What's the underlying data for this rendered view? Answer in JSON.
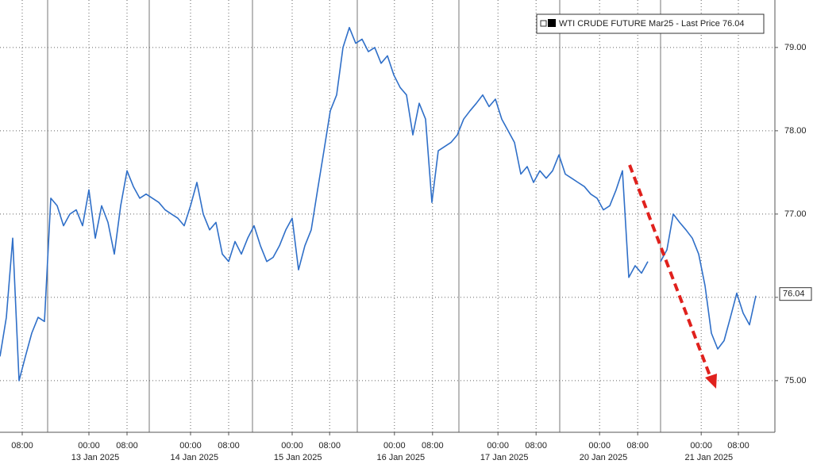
{
  "chart_data": {
    "type": "line",
    "series": [
      {
        "name": "WTI CRUDE FUTURE Mar25 - Last Price",
        "color": "#2f6fc8",
        "values": [
          75.29,
          75.76,
          76.71,
          75.0,
          75.29,
          75.57,
          75.76,
          75.71,
          77.19,
          77.1,
          76.86,
          77.0,
          77.05,
          76.86,
          77.29,
          76.71,
          77.1,
          76.9,
          76.52,
          77.1,
          77.52,
          77.33,
          77.19,
          77.24,
          77.19,
          77.14,
          77.05,
          77.0,
          76.95,
          76.86,
          77.1,
          77.38,
          77.0,
          76.81,
          76.9,
          76.52,
          76.43,
          76.67,
          76.52,
          76.71,
          76.86,
          76.62,
          76.43,
          76.48,
          76.62,
          76.81,
          76.95,
          76.33,
          76.62,
          76.81,
          77.29,
          77.76,
          78.24,
          78.43,
          79.0,
          79.24,
          79.05,
          79.1,
          78.95,
          79.0,
          78.81,
          78.9,
          78.67,
          78.52,
          78.43,
          77.95,
          78.33,
          78.14,
          77.14,
          77.76,
          77.81,
          77.86,
          77.95,
          78.14,
          78.24,
          78.33,
          78.43,
          78.29,
          78.38,
          78.14,
          78.0,
          77.86,
          77.48,
          77.57,
          77.38,
          77.52,
          77.43,
          77.52,
          77.71,
          77.48,
          77.43,
          77.38,
          77.33,
          77.24,
          77.19,
          77.05,
          77.1,
          77.29,
          77.52,
          76.24,
          76.38,
          76.29,
          76.43,
          null,
          76.43,
          76.57,
          77.0,
          76.9,
          76.81,
          76.71,
          76.52,
          76.14,
          75.57,
          75.38,
          75.48,
          75.76,
          76.05,
          75.81,
          75.67,
          76.02
        ]
      }
    ],
    "last_price": 76.04,
    "xlim": [
      0,
      122
    ],
    "ylim": [
      74.38,
      79.57
    ],
    "yticks": [
      {
        "value": 75,
        "label": "75.00"
      },
      {
        "value": 76,
        "label": "76.00"
      },
      {
        "value": 77,
        "label": "77.00"
      },
      {
        "value": 78,
        "label": "78.00"
      },
      {
        "value": 79,
        "label": "79.00"
      }
    ],
    "xticks": [
      {
        "value": 3.5,
        "label": "08:00"
      },
      {
        "value": 14,
        "label": "00:00"
      },
      {
        "value": 20,
        "label": "08:00"
      },
      {
        "value": 30,
        "label": "00:00"
      },
      {
        "value": 36,
        "label": "08:00"
      },
      {
        "value": 46,
        "label": "00:00"
      },
      {
        "value": 51.9,
        "label": "08:00"
      },
      {
        "value": 62.1,
        "label": "00:00"
      },
      {
        "value": 68.1,
        "label": "08:00"
      },
      {
        "value": 78.4,
        "label": "00:00"
      },
      {
        "value": 84.4,
        "label": "08:00"
      },
      {
        "value": 94.4,
        "label": "00:00"
      },
      {
        "value": 100.4,
        "label": "08:00"
      },
      {
        "value": 110.4,
        "label": "00:00"
      },
      {
        "value": 116.25,
        "label": "08:00"
      }
    ],
    "date_labels": [
      {
        "value": 15,
        "label": "13 Jan 2025"
      },
      {
        "value": 30.6,
        "label": "14 Jan 2025"
      },
      {
        "value": 46.9,
        "label": "15 Jan 2025"
      },
      {
        "value": 63.1,
        "label": "16 Jan 2025"
      },
      {
        "value": 79.4,
        "label": "17 Jan 2025"
      },
      {
        "value": 95,
        "label": "20 Jan 2025"
      },
      {
        "value": 111.6,
        "label": "21 Jan 2025"
      }
    ],
    "grid": true
  }
}
